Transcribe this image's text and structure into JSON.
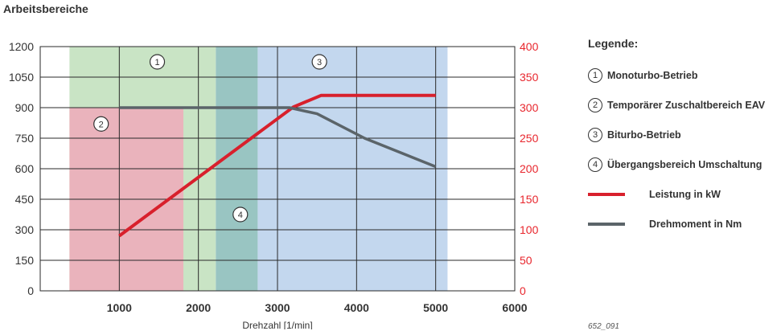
{
  "page_title": "Arbeitsbereiche",
  "figure_id": "652_091",
  "legend": {
    "title": "Legende:",
    "items": [
      {
        "marker": "1",
        "label": "Monoturbo-Betrieb"
      },
      {
        "marker": "2",
        "label": "Temporärer Zuschaltbereich EAV"
      },
      {
        "marker": "3",
        "label": "Biturbo-Betrieb"
      },
      {
        "marker": "4",
        "label": "Übergangsbereich Umschaltung"
      }
    ],
    "lines": [
      {
        "label": "Leistung in kW",
        "color": "#d8202c"
      },
      {
        "label": "Drehmoment in Nm",
        "color": "#5b6469"
      }
    ]
  },
  "chart_data": {
    "type": "line",
    "xlabel": "Drehzahl [1/min]",
    "xlim": [
      0,
      6000
    ],
    "x_ticks": [
      "1000",
      "2000",
      "3000",
      "4000",
      "5000",
      "6000"
    ],
    "y_left_lim": [
      0,
      1200
    ],
    "y_left_ticks": [
      "0",
      "150",
      "300",
      "450",
      "600",
      "750",
      "900",
      "1050",
      "1200"
    ],
    "y_right_lim": [
      0,
      400
    ],
    "y_right_ticks": [
      "0",
      "50",
      "100",
      "150",
      "200",
      "250",
      "300",
      "350",
      "400"
    ],
    "right_axis_color": "#e8262d",
    "grid": true,
    "regions": [
      {
        "marker": "1",
        "x_start": 370,
        "x_end": 2220,
        "y_start": 0,
        "y_end": 1200,
        "color": "#c9e4c5"
      },
      {
        "marker": "2",
        "x_start": 370,
        "x_end": 1810,
        "y_start": 0,
        "y_end": 900,
        "color": "#eab3bc"
      },
      {
        "marker": "4",
        "x_start": 2220,
        "x_end": 2750,
        "y_start": 0,
        "y_end": 1200,
        "color": "#99c5c2"
      },
      {
        "marker": "3",
        "x_start": 2750,
        "x_end": 5150,
        "y_start": 0,
        "y_end": 1200,
        "color": "#c3d7ee"
      }
    ],
    "region_labels": [
      {
        "marker": "1",
        "x": 1480,
        "y": 1125
      },
      {
        "marker": "2",
        "x": 770,
        "y": 820
      },
      {
        "marker": "3",
        "x": 3530,
        "y": 1125
      },
      {
        "marker": "4",
        "x": 2530,
        "y": 375
      }
    ],
    "series": [
      {
        "name": "Leistung in kW",
        "axis": "right",
        "color": "#d8202c",
        "x": [
          1000,
          3200,
          3550,
          5000
        ],
        "values": [
          90,
          301,
          320,
          320
        ]
      },
      {
        "name": "Drehmoment in Nm",
        "axis": "left",
        "color": "#5b6469",
        "x": [
          1000,
          3150,
          3500,
          4100,
          5000
        ],
        "values": [
          900,
          900,
          870,
          750,
          610
        ]
      }
    ]
  }
}
